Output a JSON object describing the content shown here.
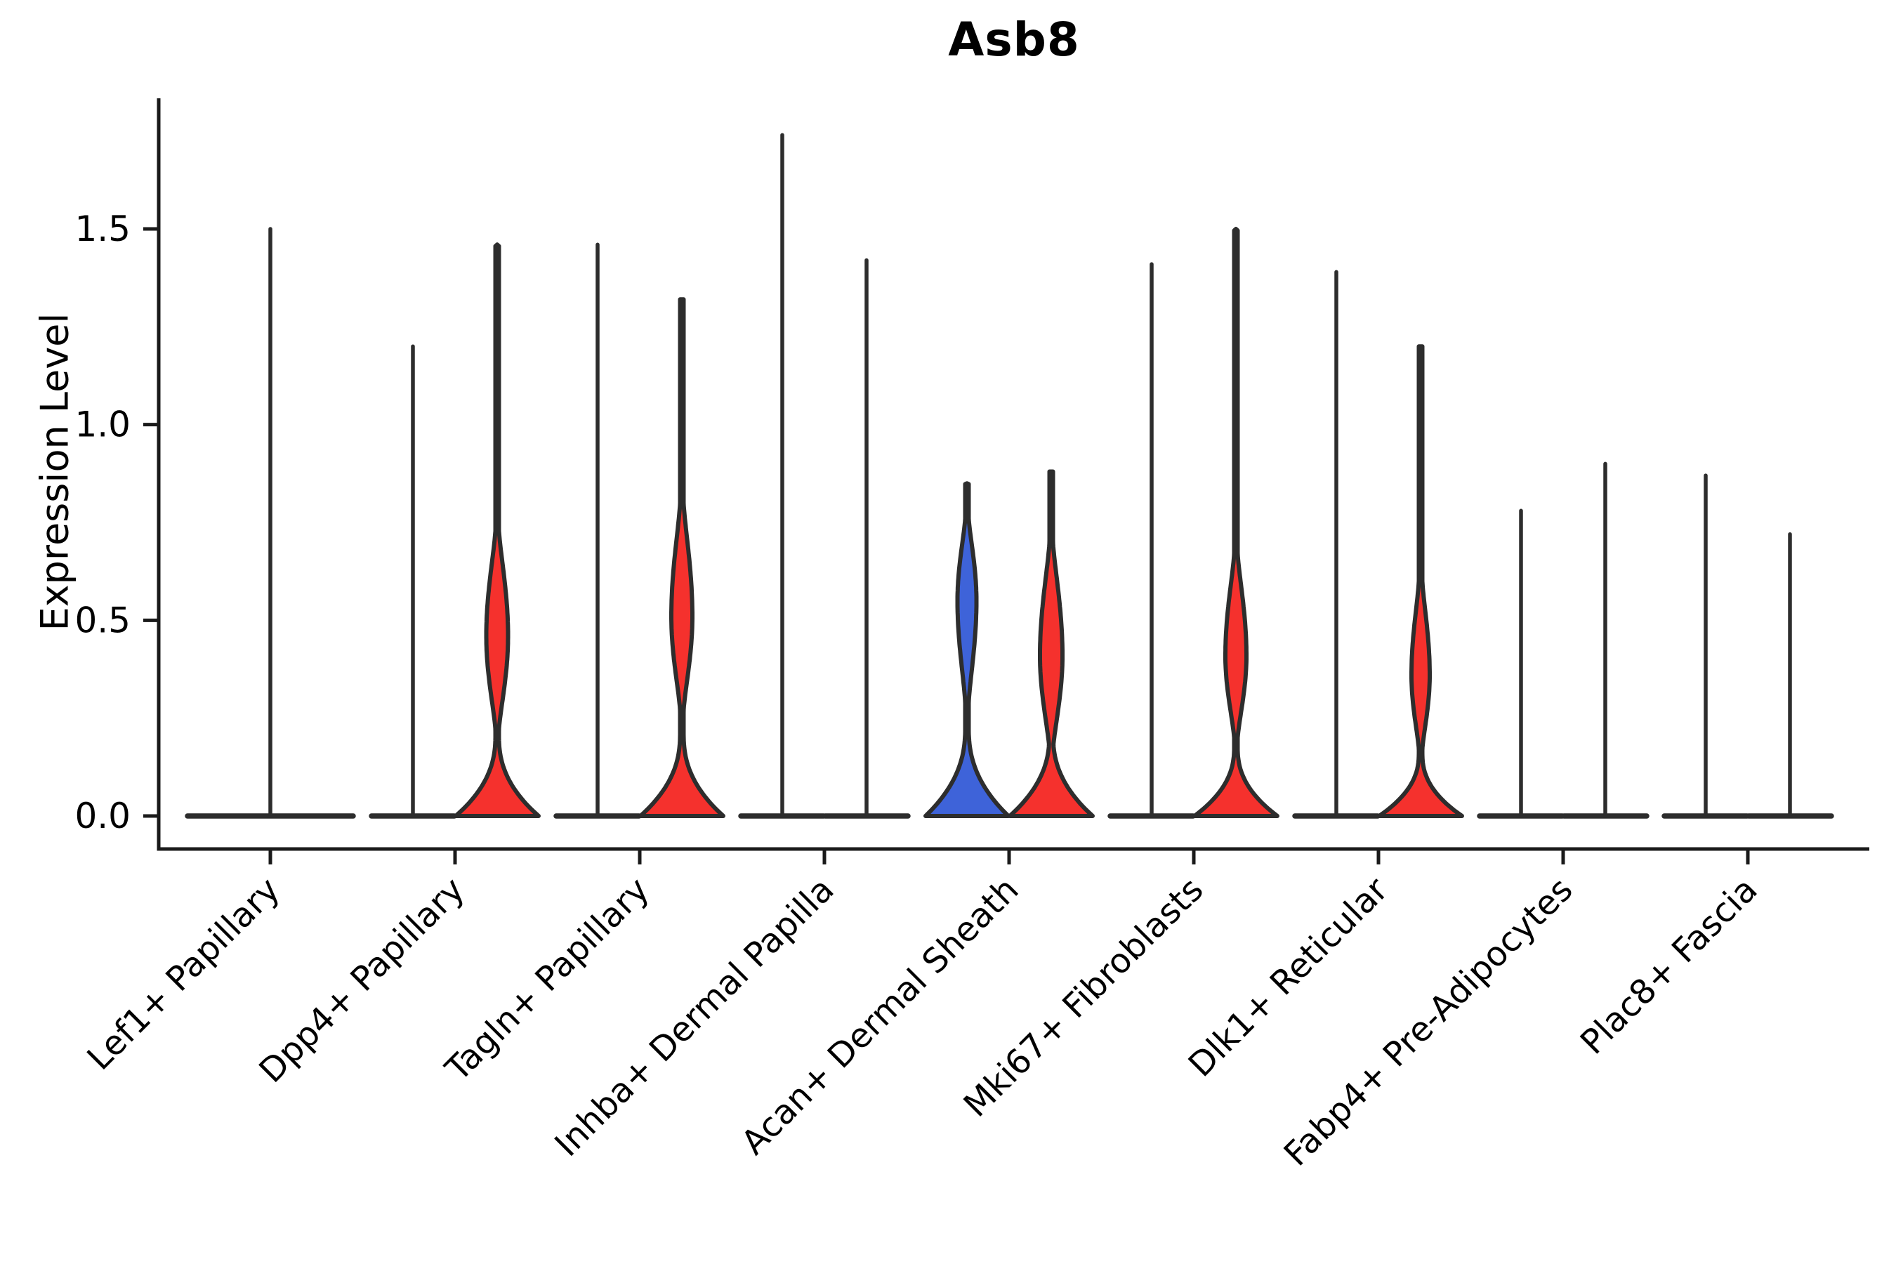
{
  "chart_data": {
    "type": "violin",
    "title": "Asb8",
    "ylabel": "Expression Level",
    "y_axis": {
      "ticks": [
        0.0,
        0.5,
        1.0,
        1.5
      ],
      "tick_labels": [
        "0.0",
        "0.5",
        "1.0",
        "1.5"
      ],
      "range_shown": [
        -0.08,
        1.83
      ]
    },
    "grid": false,
    "legend": "none",
    "categories": [
      {
        "label": "Lef1+ Papillary",
        "violins": [
          {
            "group": "single",
            "fill": "none",
            "max": 1.5
          }
        ]
      },
      {
        "label": "Dpp4+ Papillary",
        "violins": [
          {
            "group": "left",
            "fill": "none",
            "max": 1.2
          },
          {
            "group": "right",
            "fill": "red",
            "max": 1.46,
            "base_apex": 0.205,
            "bulge": {
              "lo": 0.22,
              "hi": 0.73,
              "peak": 0.46,
              "halfwidth": 15.5
            }
          }
        ]
      },
      {
        "label": "Tagln+ Papillary",
        "violins": [
          {
            "group": "left",
            "fill": "none",
            "max": 1.46
          },
          {
            "group": "right",
            "fill": "red",
            "max": 1.32,
            "base_apex": 0.21,
            "bulge": {
              "lo": 0.27,
              "hi": 0.8,
              "peak": 0.51,
              "halfwidth": 15
            }
          }
        ]
      },
      {
        "label": "Inhba+ Dermal Papilla",
        "violins": [
          {
            "group": "left",
            "fill": "none",
            "max": 1.74
          },
          {
            "group": "right",
            "fill": "none",
            "max": 1.42
          }
        ]
      },
      {
        "label": "Acan+ Dermal Sheath",
        "violins": [
          {
            "group": "left",
            "fill": "blue",
            "max": 0.85,
            "base_apex": 0.225,
            "bulge": {
              "lo": 0.29,
              "hi": 0.76,
              "peak": 0.55,
              "halfwidth": 13.5
            }
          },
          {
            "group": "right",
            "fill": "red",
            "max": 0.88,
            "base_apex": 0.21,
            "bulge": {
              "lo": 0.17,
              "hi": 0.7,
              "peak": 0.41,
              "halfwidth": 16
            }
          }
        ]
      },
      {
        "label": "Mki67+ Fibroblasts",
        "violins": [
          {
            "group": "left",
            "fill": "none",
            "max": 1.41
          },
          {
            "group": "right",
            "fill": "red",
            "max": 1.5,
            "base_apex": 0.175,
            "bulge": {
              "lo": 0.2,
              "hi": 0.67,
              "peak": 0.41,
              "halfwidth": 15
            }
          }
        ]
      },
      {
        "label": "Dlk1+ Reticular",
        "violins": [
          {
            "group": "left",
            "fill": "none",
            "max": 1.39
          },
          {
            "group": "right",
            "fill": "red",
            "max": 1.2,
            "base_apex": 0.16,
            "bulge": {
              "lo": 0.17,
              "hi": 0.6,
              "peak": 0.36,
              "halfwidth": 13
            }
          }
        ]
      },
      {
        "label": "Fabp4+ Pre-Adipocytes",
        "violins": [
          {
            "group": "left",
            "fill": "none",
            "max": 0.78
          },
          {
            "group": "right",
            "fill": "none",
            "max": 0.9
          }
        ]
      },
      {
        "label": "Plac8+ Fascia",
        "violins": [
          {
            "group": "left",
            "fill": "none",
            "max": 0.87
          },
          {
            "group": "right",
            "fill": "none",
            "max": 0.72
          }
        ]
      }
    ],
    "colors": {
      "red": "#F5312D",
      "blue": "#3E63D9",
      "edge": "#2D2D2D",
      "axis": "#1A1A1A",
      "text": "#000000"
    }
  }
}
